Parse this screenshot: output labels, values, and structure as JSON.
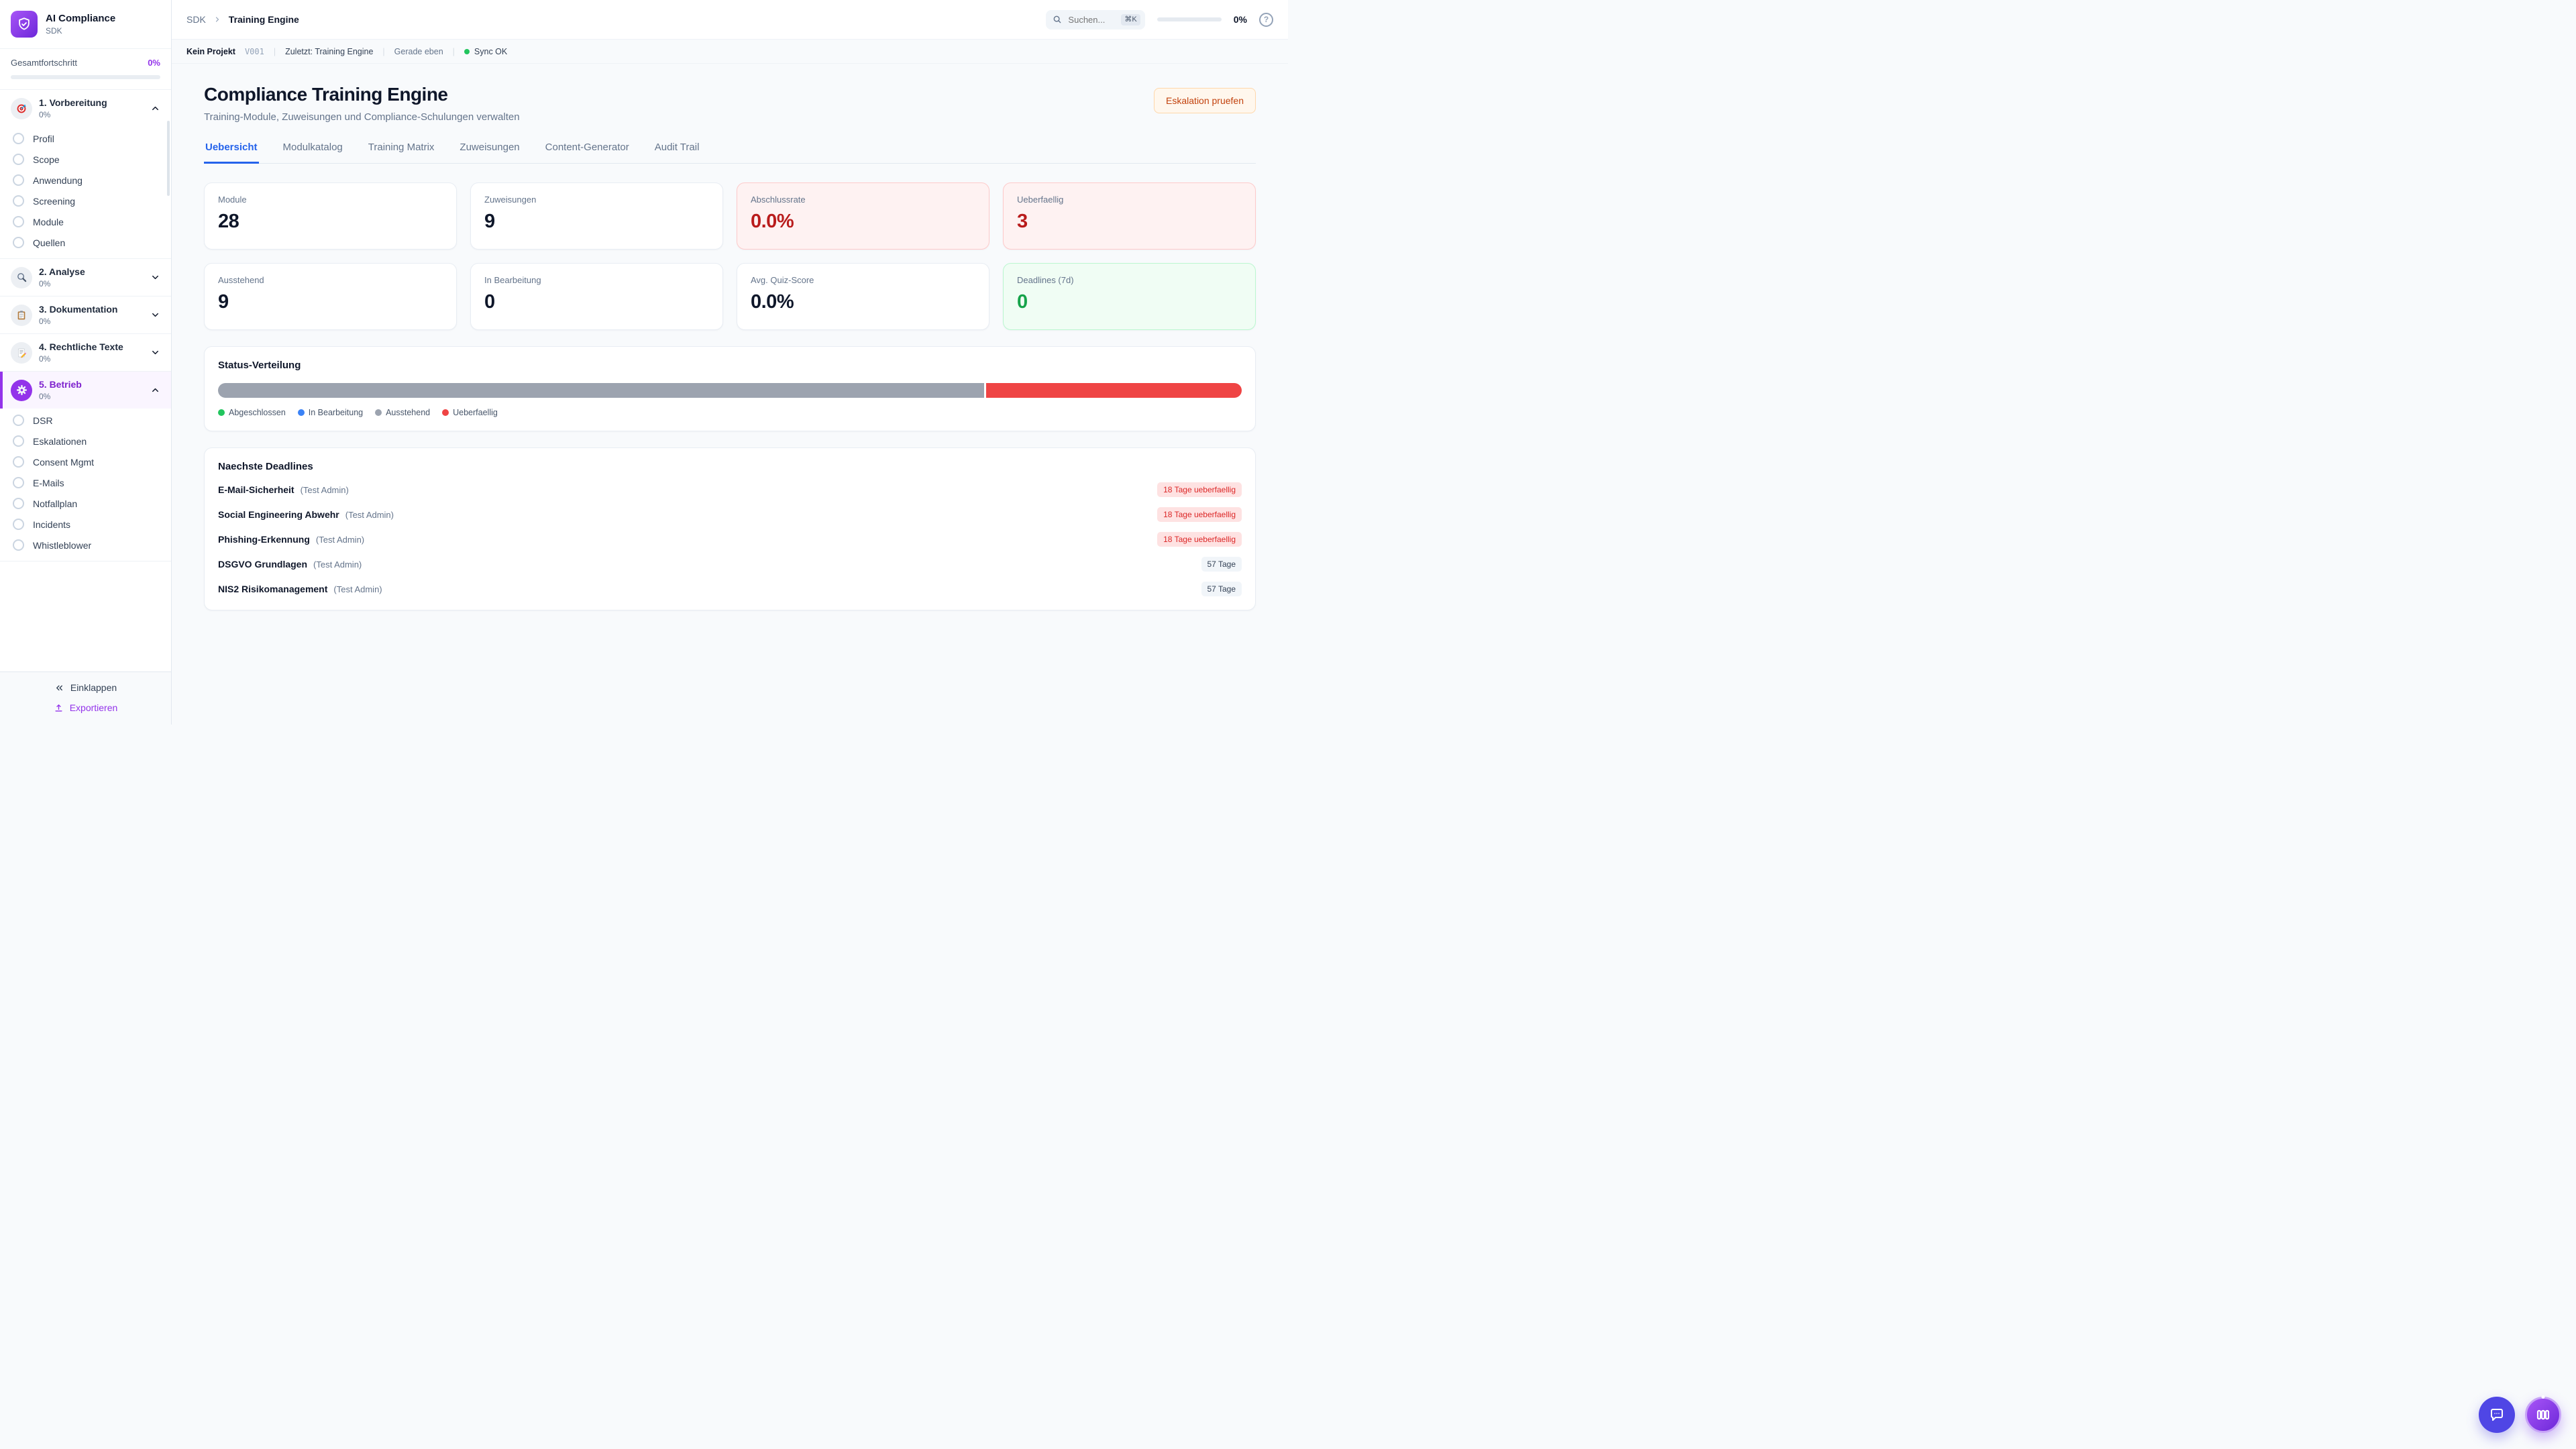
{
  "colors": {
    "accent_purple": "#9333ea",
    "tab_active_blue": "#2563eb",
    "danger_red": "#b91c1c",
    "success_green": "#16a34a",
    "bar_gray": "#9ca3af",
    "bar_red": "#ef4444"
  },
  "brand": {
    "name": "AI Compliance",
    "subtitle": "SDK",
    "icon": "shield-check-icon"
  },
  "overall_progress": {
    "label": "Gesamtfortschritt",
    "value": "0%",
    "percent": 0
  },
  "sidebar": {
    "sections": [
      {
        "title": "1. Vorbereitung",
        "percent": "0%",
        "icon": "target-icon",
        "expanded": true,
        "active": false,
        "items": [
          "Profil",
          "Scope",
          "Anwendung",
          "Screening",
          "Module",
          "Quellen"
        ]
      },
      {
        "title": "2. Analyse",
        "percent": "0%",
        "icon": "magnifier-icon",
        "expanded": false,
        "active": false,
        "items": []
      },
      {
        "title": "3. Dokumentation",
        "percent": "0%",
        "icon": "clipboard-icon",
        "expanded": false,
        "active": false,
        "items": []
      },
      {
        "title": "4. Rechtliche Texte",
        "percent": "0%",
        "icon": "memo-icon",
        "expanded": false,
        "active": false,
        "items": []
      },
      {
        "title": "5. Betrieb",
        "percent": "0%",
        "icon": "gear-icon",
        "expanded": true,
        "active": true,
        "items": [
          "DSR",
          "Eskalationen",
          "Consent Mgmt",
          "E-Mails",
          "Notfallplan",
          "Incidents",
          "Whistleblower"
        ]
      }
    ],
    "collapse_label": "Einklappen",
    "export_label": "Exportieren"
  },
  "header": {
    "breadcrumb": {
      "root": "SDK",
      "current": "Training Engine"
    },
    "search_placeholder": "Suchen...",
    "search_kbd": "⌘K",
    "progress_value": "0%",
    "progress_percent": 0
  },
  "statusbar": {
    "project": "Kein Projekt",
    "version": "V001",
    "last": "Zuletzt: Training Engine",
    "time": "Gerade eben",
    "sync": "Sync OK"
  },
  "page": {
    "title": "Compliance Training Engine",
    "subtitle": "Training-Module, Zuweisungen und Compliance-Schulungen verwalten",
    "action_button": "Eskalation pruefen",
    "tabs": [
      "Uebersicht",
      "Modulkatalog",
      "Training Matrix",
      "Zuweisungen",
      "Content-Generator",
      "Audit Trail"
    ],
    "active_tab": "Uebersicht"
  },
  "stats": [
    {
      "label": "Module",
      "value": "28",
      "variant": "default"
    },
    {
      "label": "Zuweisungen",
      "value": "9",
      "variant": "default"
    },
    {
      "label": "Abschlussrate",
      "value": "0.0%",
      "variant": "danger"
    },
    {
      "label": "Ueberfaellig",
      "value": "3",
      "variant": "danger"
    },
    {
      "label": "Ausstehend",
      "value": "9",
      "variant": "default"
    },
    {
      "label": "In Bearbeitung",
      "value": "0",
      "variant": "default"
    },
    {
      "label": "Avg. Quiz-Score",
      "value": "0.0%",
      "variant": "default"
    },
    {
      "label": "Deadlines (7d)",
      "value": "0",
      "variant": "success"
    }
  ],
  "status_distribution": {
    "title": "Status-Verteilung",
    "chart_data": {
      "type": "bar",
      "categories": [
        "Abgeschlossen",
        "In Bearbeitung",
        "Ausstehend",
        "Ueberfaellig"
      ],
      "values_percent": [
        0,
        0,
        75,
        25
      ],
      "colors": [
        "#22c55e",
        "#3b82f6",
        "#9ca3af",
        "#ef4444"
      ]
    }
  },
  "deadlines": {
    "title": "Naechste Deadlines",
    "rows": [
      {
        "module": "E-Mail-Sicherheit",
        "assignee": "(Test Admin)",
        "badge": "18 Tage ueberfaellig",
        "overdue": true
      },
      {
        "module": "Social Engineering Abwehr",
        "assignee": "(Test Admin)",
        "badge": "18 Tage ueberfaellig",
        "overdue": true
      },
      {
        "module": "Phishing-Erkennung",
        "assignee": "(Test Admin)",
        "badge": "18 Tage ueberfaellig",
        "overdue": true
      },
      {
        "module": "DSGVO Grundlagen",
        "assignee": "(Test Admin)",
        "badge": "57 Tage",
        "overdue": false
      },
      {
        "module": "NIS2 Risikomanagement",
        "assignee": "(Test Admin)",
        "badge": "57 Tage",
        "overdue": false
      }
    ]
  },
  "fabs": [
    {
      "icon": "chat-bubble-icon"
    },
    {
      "icon": "board-columns-icon"
    }
  ]
}
